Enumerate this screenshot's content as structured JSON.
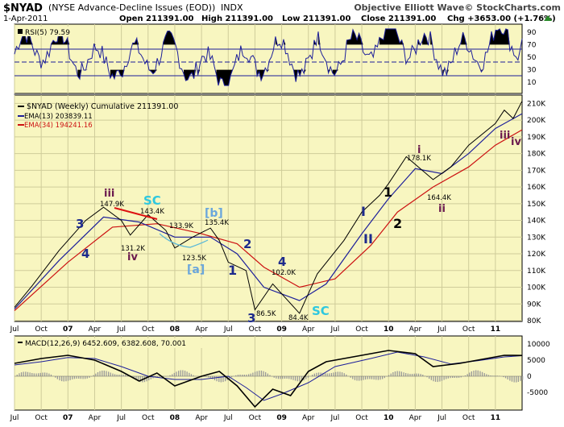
{
  "header": {
    "symbol": "$NYAD",
    "description": "(NYSE Advance-Decline Issues (EOD))",
    "exchange": "INDX",
    "brand": "Objective Elliott Wave© StockCharts.com",
    "date": "1-Apr-2011",
    "open": "Open 211391.00",
    "high": "High 211391.00",
    "low": "Low 211391.00",
    "close": "Close 211391.00",
    "chg": "Chg +3653.00 (+1.76%)",
    "chg_icon": "up-triangle-icon"
  },
  "rsi": {
    "label": "RSI(5) 79.59",
    "ticks": [
      "90",
      "70",
      "50",
      "30",
      "10"
    ]
  },
  "price": {
    "legend_main": "$NYAD (Weekly) Cumulative 211391.00",
    "legend_ema13": "EMA(13) 203839.11",
    "legend_ema34": "EMA(34) 194241.16",
    "ticks": [
      "210K",
      "200K",
      "190K",
      "180K",
      "170K",
      "160K",
      "150K",
      "140K",
      "130K",
      "120K",
      "110K",
      "100K",
      "90K",
      "80K"
    ]
  },
  "macd": {
    "label": "MACD(12,26,9) 6452.609, 6382.608, 70.001",
    "ticks": [
      "10000",
      "5000",
      "0",
      "-5000"
    ]
  },
  "x_labels_price": [
    "Jul",
    "Oct",
    "07",
    "Apr",
    "Jul",
    "Oct",
    "08",
    "Apr",
    "Jul",
    "Oct",
    "09",
    "Apr",
    "Jul",
    "Oct",
    "10",
    "Apr",
    "Jul",
    "Oct",
    "11"
  ],
  "x_labels_macd": [
    "Jul",
    "Oct",
    "07",
    "Apr",
    "Jul",
    "Oct",
    "08",
    "Apr",
    "Jul",
    "Oct",
    "09",
    "Apr",
    "Jul",
    "Oct",
    "10",
    "Apr",
    "Jul",
    "Oct",
    "11"
  ],
  "annotations": {
    "w3_a": "3",
    "w4_a": "4",
    "iii_a": "iii",
    "v147": "147.9K",
    "iv_a": "iv",
    "v131": "131.2K",
    "sc_a": "SC",
    "v143": "143.4K",
    "v133": "133.9K",
    "b_br": "[b]",
    "v135": "135.4K",
    "v123": "123.5K",
    "a_br": "[a]",
    "w1_a": "1",
    "w2_a": "2",
    "w4_b": "4",
    "v102": "102.0K",
    "w3_b": "3",
    "v86": "86.5K",
    "v84": "84.4K",
    "sc_b": "SC",
    "I_big": "I",
    "II_big": "II",
    "w1_b": "1",
    "w2_b": "2",
    "i_small": "i",
    "v178": "178.1K",
    "v164": "164.4K",
    "ii_small": "ii",
    "iii_b": "iii",
    "iv_b": "iv"
  },
  "colors": {
    "panel_bg": "#f8f6c0",
    "price_line": "#000000",
    "ema13": "#1d1f9a",
    "ema34": "#cc1111",
    "wave_navy": "#1d2a8c",
    "wave_purple": "#6b1a4e",
    "wave_cyan": "#2ec8df",
    "wave_lightblue": "#6aa6dc"
  },
  "chart_data": {
    "type": "line",
    "title": "$NYAD (NYSE Advance-Decline Issues (EOD))",
    "ylabel": "",
    "ylim": [
      80000,
      215000
    ],
    "x_range": [
      "2006-07",
      "2011-04"
    ],
    "series": [
      {
        "name": "$NYAD (Weekly) Cumulative",
        "points": [
          [
            "2006-07",
            88000
          ],
          [
            "2006-09",
            101000
          ],
          [
            "2006-12",
            122000
          ],
          [
            "2007-03",
            140000
          ],
          [
            "2007-05",
            147900
          ],
          [
            "2007-07",
            140000
          ],
          [
            "2007-08",
            131200
          ],
          [
            "2007-10",
            143400
          ],
          [
            "2007-12",
            134000
          ],
          [
            "2008-01",
            123500
          ],
          [
            "2008-03",
            130000
          ],
          [
            "2008-05",
            135400
          ],
          [
            "2008-06",
            128000
          ],
          [
            "2008-07",
            115000
          ],
          [
            "2008-09",
            110000
          ],
          [
            "2008-10",
            86500
          ],
          [
            "2008-12",
            102000
          ],
          [
            "2009-03",
            84400
          ],
          [
            "2009-05",
            108000
          ],
          [
            "2009-08",
            128000
          ],
          [
            "2009-10",
            145000
          ],
          [
            "2009-12",
            155000
          ],
          [
            "2010-01",
            162000
          ],
          [
            "2010-03",
            178100
          ],
          [
            "2010-05",
            169000
          ],
          [
            "2010-06",
            164400
          ],
          [
            "2010-08",
            172000
          ],
          [
            "2010-10",
            185000
          ],
          [
            "2011-01",
            198000
          ],
          [
            "2011-02",
            206000
          ],
          [
            "2011-03",
            201000
          ],
          [
            "2011-04",
            211391
          ]
        ]
      },
      {
        "name": "EMA(13)",
        "points": [
          [
            "2006-07",
            87000
          ],
          [
            "2006-12",
            116000
          ],
          [
            "2007-05",
            142000
          ],
          [
            "2007-09",
            139000
          ],
          [
            "2008-01",
            130000
          ],
          [
            "2008-05",
            130000
          ],
          [
            "2008-08",
            120000
          ],
          [
            "2008-11",
            100000
          ],
          [
            "2009-03",
            92000
          ],
          [
            "2009-06",
            102000
          ],
          [
            "2009-10",
            132000
          ],
          [
            "2010-01",
            153000
          ],
          [
            "2010-04",
            171000
          ],
          [
            "2010-07",
            168000
          ],
          [
            "2010-10",
            180000
          ],
          [
            "2011-01",
            195000
          ],
          [
            "2011-04",
            203839
          ]
        ]
      },
      {
        "name": "EMA(34)",
        "points": [
          [
            "2006-07",
            86000
          ],
          [
            "2007-01",
            115000
          ],
          [
            "2007-06",
            136000
          ],
          [
            "2007-11",
            138000
          ],
          [
            "2008-04",
            132000
          ],
          [
            "2008-08",
            126000
          ],
          [
            "2008-11",
            112000
          ],
          [
            "2009-03",
            100000
          ],
          [
            "2009-07",
            105000
          ],
          [
            "2009-11",
            125000
          ],
          [
            "2010-02",
            145000
          ],
          [
            "2010-06",
            160000
          ],
          [
            "2010-10",
            172000
          ],
          [
            "2011-01",
            185000
          ],
          [
            "2011-04",
            194241
          ]
        ]
      }
    ],
    "rsi": {
      "name": "RSI(5)",
      "last": 79.59,
      "ylim": [
        0,
        100
      ],
      "levels": [
        70,
        30
      ]
    },
    "macd": {
      "params": "12,26,9",
      "macd": 6452.609,
      "signal": 6382.608,
      "histogram": 70.001,
      "ylim": [
        -8000,
        11000
      ]
    }
  }
}
